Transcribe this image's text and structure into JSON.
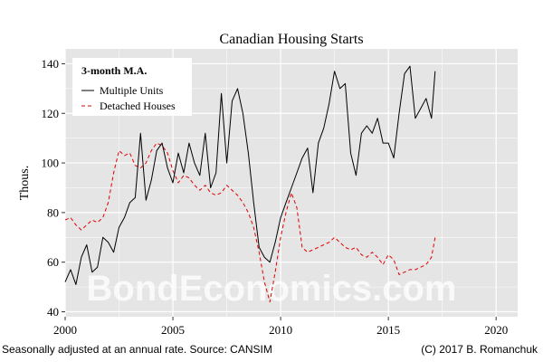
{
  "chart_data": {
    "type": "line",
    "title": "Canadian Housing Starts",
    "xlabel": "",
    "ylabel": "Thous.",
    "xlim": [
      2000,
      2021
    ],
    "ylim": [
      38,
      146
    ],
    "xticks": [
      2000,
      2005,
      2010,
      2015,
      2020
    ],
    "yticks": [
      40,
      60,
      80,
      100,
      120,
      140
    ],
    "x_tick_labels": [
      "2000",
      "2005",
      "2010",
      "2015",
      "2020"
    ],
    "y_tick_labels": [
      "40",
      "60",
      "80",
      "100",
      "120",
      "140"
    ],
    "legend": {
      "title": "3-month M.A.",
      "placement": "top-left",
      "entries": [
        "Multiple Units",
        "Detached Houses"
      ]
    },
    "watermark": "BondEconomics.com",
    "footer_left": "Seasonally adjusted at an annual rate. Source: CANSIM",
    "footer_right": "(C) 2017 B. Romanchuk",
    "colors": {
      "panel": "#e5e5e5",
      "grid": "#ffffff",
      "multiple": "#000000",
      "detached": "#e00000"
    },
    "series": [
      {
        "name": "Multiple Units",
        "style": "solid",
        "x": [
          2000.0,
          2000.25,
          2000.5,
          2000.75,
          2001.0,
          2001.25,
          2001.5,
          2001.75,
          2002.0,
          2002.25,
          2002.5,
          2002.75,
          2003.0,
          2003.25,
          2003.5,
          2003.75,
          2004.0,
          2004.25,
          2004.5,
          2004.75,
          2005.0,
          2005.25,
          2005.5,
          2005.75,
          2006.0,
          2006.25,
          2006.5,
          2006.75,
          2007.0,
          2007.25,
          2007.5,
          2007.75,
          2008.0,
          2008.25,
          2008.5,
          2008.75,
          2009.0,
          2009.25,
          2009.5,
          2009.75,
          2010.0,
          2010.25,
          2010.5,
          2010.75,
          2011.0,
          2011.25,
          2011.5,
          2011.75,
          2012.0,
          2012.25,
          2012.5,
          2012.75,
          2013.0,
          2013.25,
          2013.5,
          2013.75,
          2014.0,
          2014.25,
          2014.5,
          2014.75,
          2015.0,
          2015.25,
          2015.5,
          2015.75,
          2016.0,
          2016.25,
          2016.5,
          2016.75,
          2017.0,
          2017.17
        ],
        "values": [
          52,
          57,
          51,
          62,
          67,
          56,
          58,
          70,
          68,
          64,
          74,
          78,
          84,
          86,
          112,
          85,
          93,
          105,
          108,
          98,
          92,
          104,
          96,
          108,
          100,
          95,
          112,
          90,
          96,
          128,
          100,
          125,
          130,
          120,
          104,
          84,
          66,
          62,
          60,
          68,
          78,
          84,
          90,
          96,
          102,
          106,
          88,
          108,
          114,
          124,
          137,
          130,
          132,
          104,
          95,
          112,
          115,
          112,
          118,
          108,
          108,
          102,
          120,
          136,
          139,
          118,
          122,
          126,
          118,
          137
        ]
      },
      {
        "name": "Detached Houses",
        "style": "dashed",
        "x": [
          2000.0,
          2000.25,
          2000.5,
          2000.75,
          2001.0,
          2001.25,
          2001.5,
          2001.75,
          2002.0,
          2002.25,
          2002.5,
          2002.75,
          2003.0,
          2003.25,
          2003.5,
          2003.75,
          2004.0,
          2004.25,
          2004.5,
          2004.75,
          2005.0,
          2005.25,
          2005.5,
          2005.75,
          2006.0,
          2006.25,
          2006.5,
          2006.75,
          2007.0,
          2007.25,
          2007.5,
          2007.75,
          2008.0,
          2008.25,
          2008.5,
          2008.75,
          2009.0,
          2009.25,
          2009.5,
          2009.75,
          2010.0,
          2010.25,
          2010.5,
          2010.75,
          2011.0,
          2011.25,
          2011.5,
          2011.75,
          2012.0,
          2012.25,
          2012.5,
          2012.75,
          2013.0,
          2013.25,
          2013.5,
          2013.75,
          2014.0,
          2014.25,
          2014.5,
          2014.75,
          2015.0,
          2015.25,
          2015.5,
          2015.75,
          2016.0,
          2016.25,
          2016.5,
          2016.75,
          2017.0,
          2017.17
        ],
        "values": [
          77,
          78,
          75,
          73,
          75,
          77,
          76,
          78,
          84,
          96,
          105,
          103,
          104,
          99,
          98,
          100,
          105,
          108,
          107,
          104,
          97,
          92,
          95,
          94,
          91,
          89,
          91,
          88,
          87,
          88,
          91,
          89,
          87,
          84,
          80,
          74,
          64,
          52,
          44,
          56,
          70,
          80,
          88,
          82,
          66,
          64,
          65,
          66,
          67,
          68,
          70,
          68,
          66,
          65,
          66,
          63,
          62,
          64,
          62,
          59,
          63,
          61,
          55,
          56,
          57,
          57,
          58,
          59,
          62,
          70
        ]
      }
    ]
  }
}
